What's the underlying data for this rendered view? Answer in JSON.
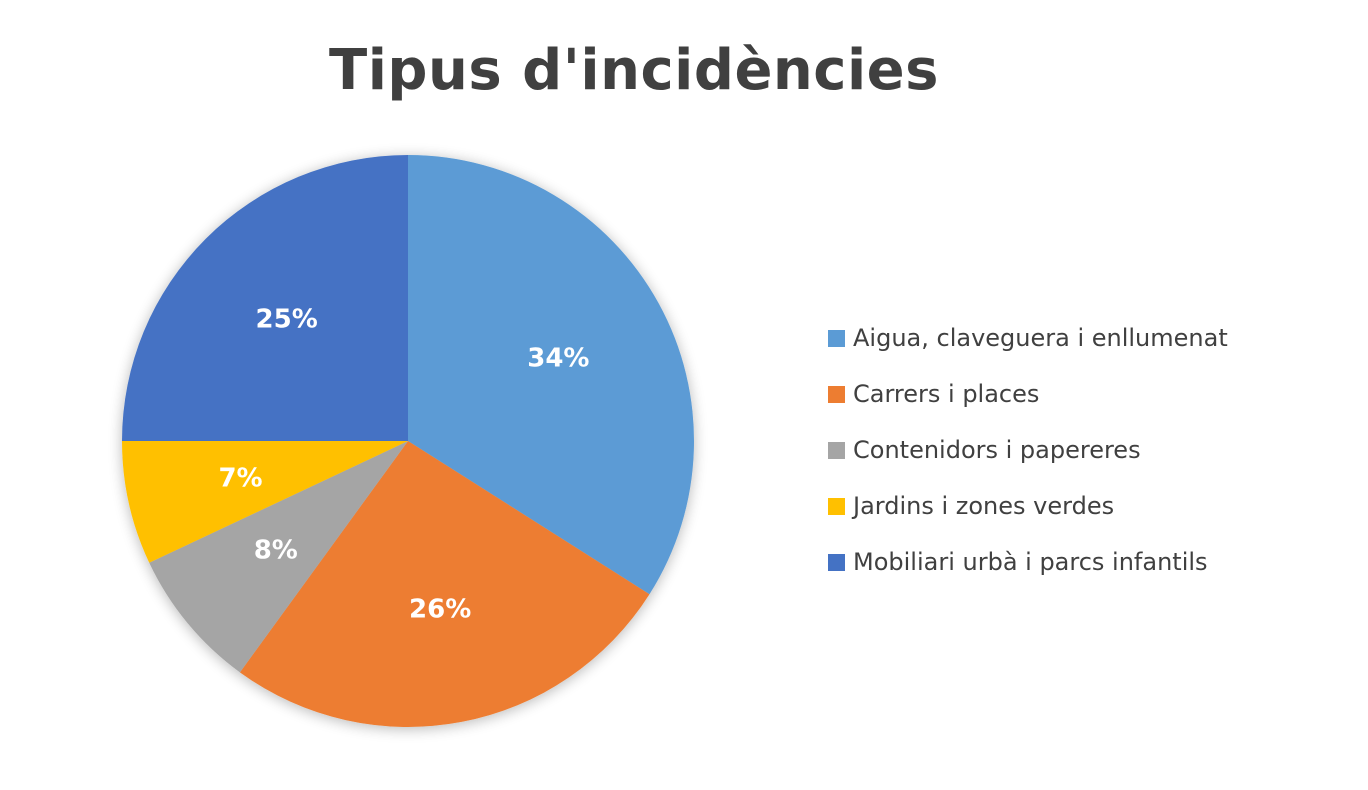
{
  "chart_data": {
    "type": "pie",
    "title": "Tipus d'incidències",
    "categories": [
      "Aigua, claveguera i enllumenat",
      "Carrers i places",
      "Contenidors i papereres",
      "Jardins i zones verdes",
      "Mobiliari urbà i parcs infantils"
    ],
    "values": [
      34,
      26,
      8,
      7,
      25
    ],
    "labels": [
      "34%",
      "26%",
      "8%",
      "7%",
      "25%"
    ],
    "colors": [
      "#5B9BD5",
      "#ED7D31",
      "#A5A5A5",
      "#FFC000",
      "#4472C4"
    ],
    "legend_position": "right"
  }
}
